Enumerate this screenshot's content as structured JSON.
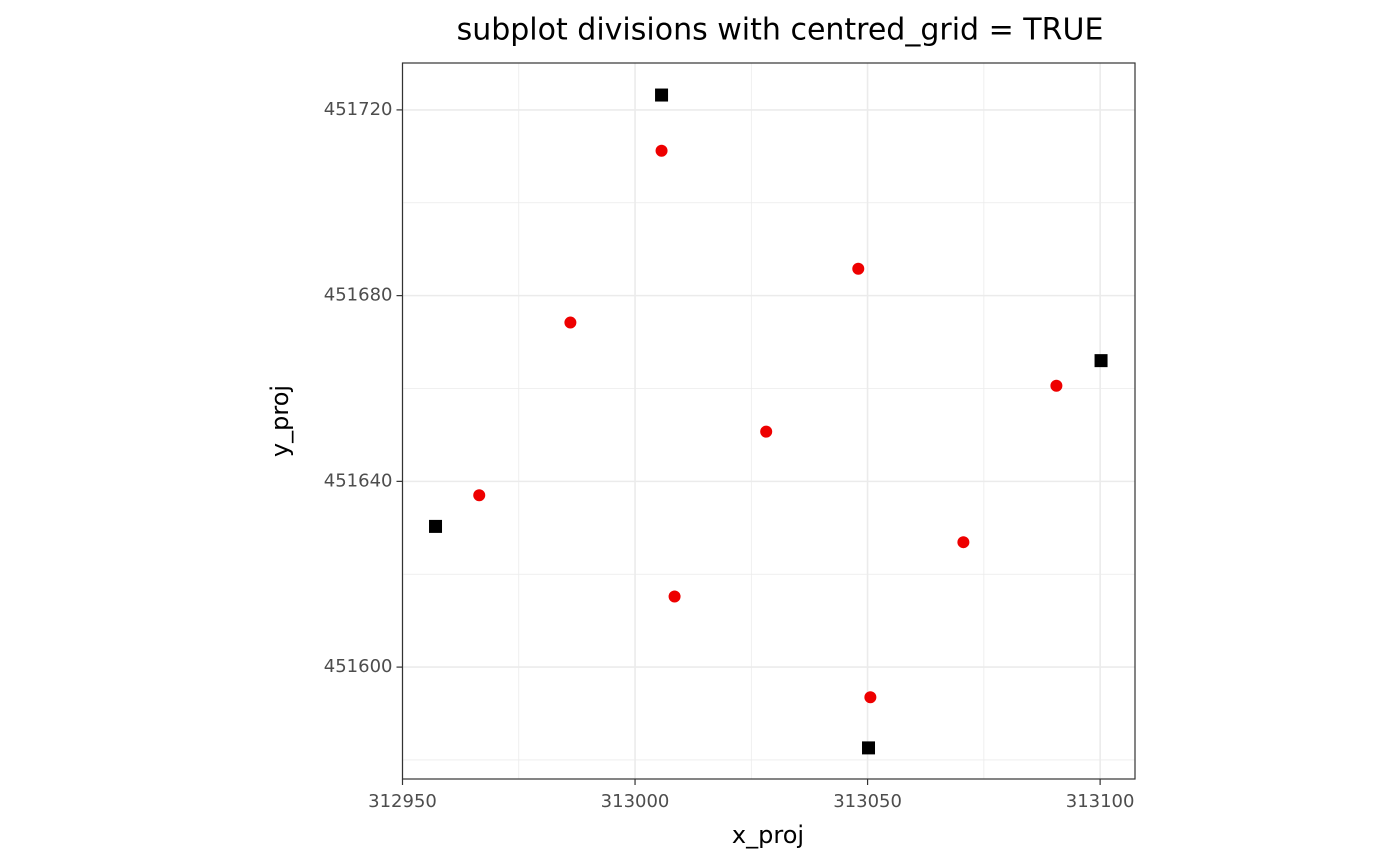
{
  "chart_data": {
    "type": "scatter",
    "title": "subplot divisions with centred_grid = TRUE",
    "x_label": "x_proj",
    "y_label": "y_proj",
    "xlim": [
      312950,
      313107.5
    ],
    "ylim": [
      451575.9,
      451730.1
    ],
    "xticks": [
      312950,
      313000,
      313050,
      313100
    ],
    "yticks": [
      451600,
      451640,
      451680,
      451720
    ],
    "x_minor_ticks": [
      312975,
      313025,
      313075
    ],
    "y_minor_ticks": [
      451580,
      451620,
      451660,
      451700
    ],
    "grid": true,
    "series": [
      {
        "color": "#000000",
        "marker": "square",
        "x": [
          313005.7,
          312957.1,
          313100.2,
          313050.2
        ],
        "values": [
          451723.2,
          451630.3,
          451666.0,
          451582.6
        ]
      },
      {
        "color": "#ee0000",
        "marker": "circle",
        "x": [
          313005.7,
          312986.1,
          313048.0,
          313028.2,
          313090.6,
          312966.5,
          313070.6,
          313008.5,
          313050.6
        ],
        "values": [
          451711.2,
          451674.2,
          451685.8,
          451650.7,
          451660.6,
          451637.0,
          451626.9,
          451615.2,
          451593.5
        ]
      }
    ]
  }
}
